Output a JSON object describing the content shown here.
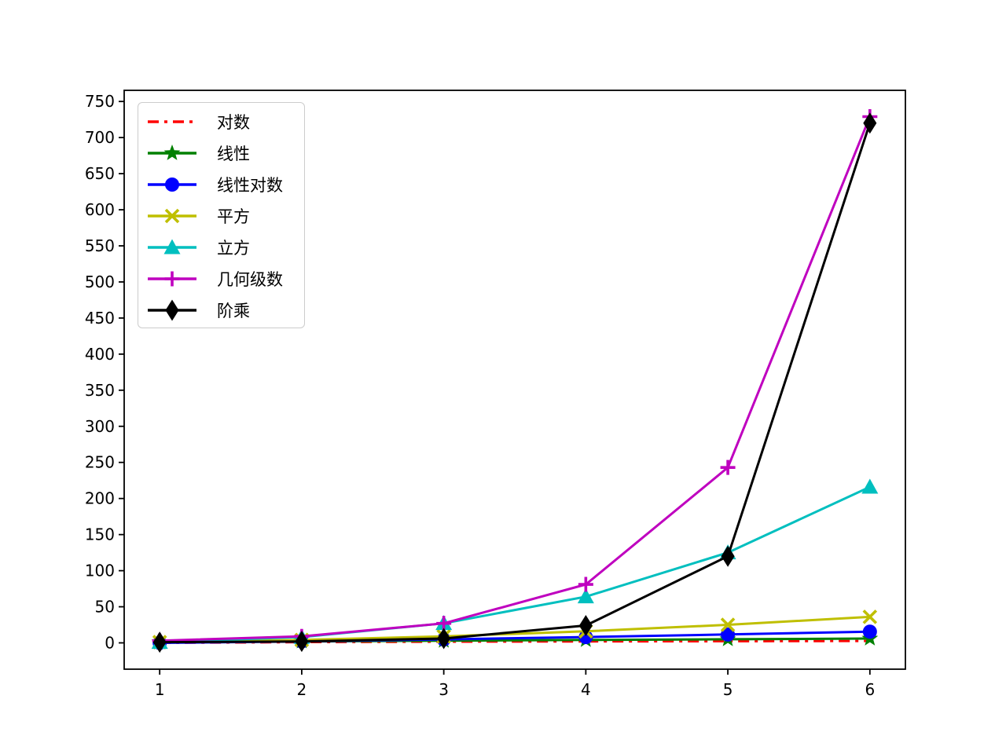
{
  "chart_data": {
    "type": "line",
    "x": [
      1,
      2,
      3,
      4,
      5,
      6
    ],
    "xticks": [
      1,
      2,
      3,
      4,
      5,
      6
    ],
    "yticks": [
      0,
      50,
      100,
      150,
      200,
      250,
      300,
      350,
      400,
      450,
      500,
      550,
      600,
      650,
      700,
      750
    ],
    "xlim": [
      0.75,
      6.25
    ],
    "ylim": [
      -36.45,
      765.45
    ],
    "grid": false,
    "title": "",
    "xlabel": "",
    "ylabel": "",
    "legend_position": "upper-left",
    "series": [
      {
        "name": "对数",
        "values": [
          0,
          1,
          1.58,
          2,
          2.32,
          2.58
        ],
        "color": "#ff0000",
        "marker": "none",
        "linestyle": "dashdot"
      },
      {
        "name": "线性",
        "values": [
          1,
          2,
          3,
          4,
          5,
          6
        ],
        "color": "#008000",
        "marker": "star",
        "linestyle": "solid"
      },
      {
        "name": "线性对数",
        "values": [
          0,
          2,
          4.75,
          8,
          11.61,
          15.51
        ],
        "color": "#0000ff",
        "marker": "circle",
        "linestyle": "solid"
      },
      {
        "name": "平方",
        "values": [
          1,
          4,
          9,
          16,
          25,
          36
        ],
        "color": "#bfbf00",
        "marker": "x",
        "linestyle": "solid"
      },
      {
        "name": "立方",
        "values": [
          1,
          8,
          27,
          64,
          125,
          216
        ],
        "color": "#00bfbf",
        "marker": "triangle-up",
        "linestyle": "solid"
      },
      {
        "name": "几何级数",
        "values": [
          3,
          9,
          27,
          81,
          243,
          729
        ],
        "color": "#bf00bf",
        "marker": "plus",
        "linestyle": "solid"
      },
      {
        "name": "阶乘",
        "values": [
          1,
          2,
          6,
          24,
          120,
          720
        ],
        "color": "#000000",
        "marker": "diamond",
        "linestyle": "solid"
      }
    ],
    "axis_color": "#000000"
  }
}
